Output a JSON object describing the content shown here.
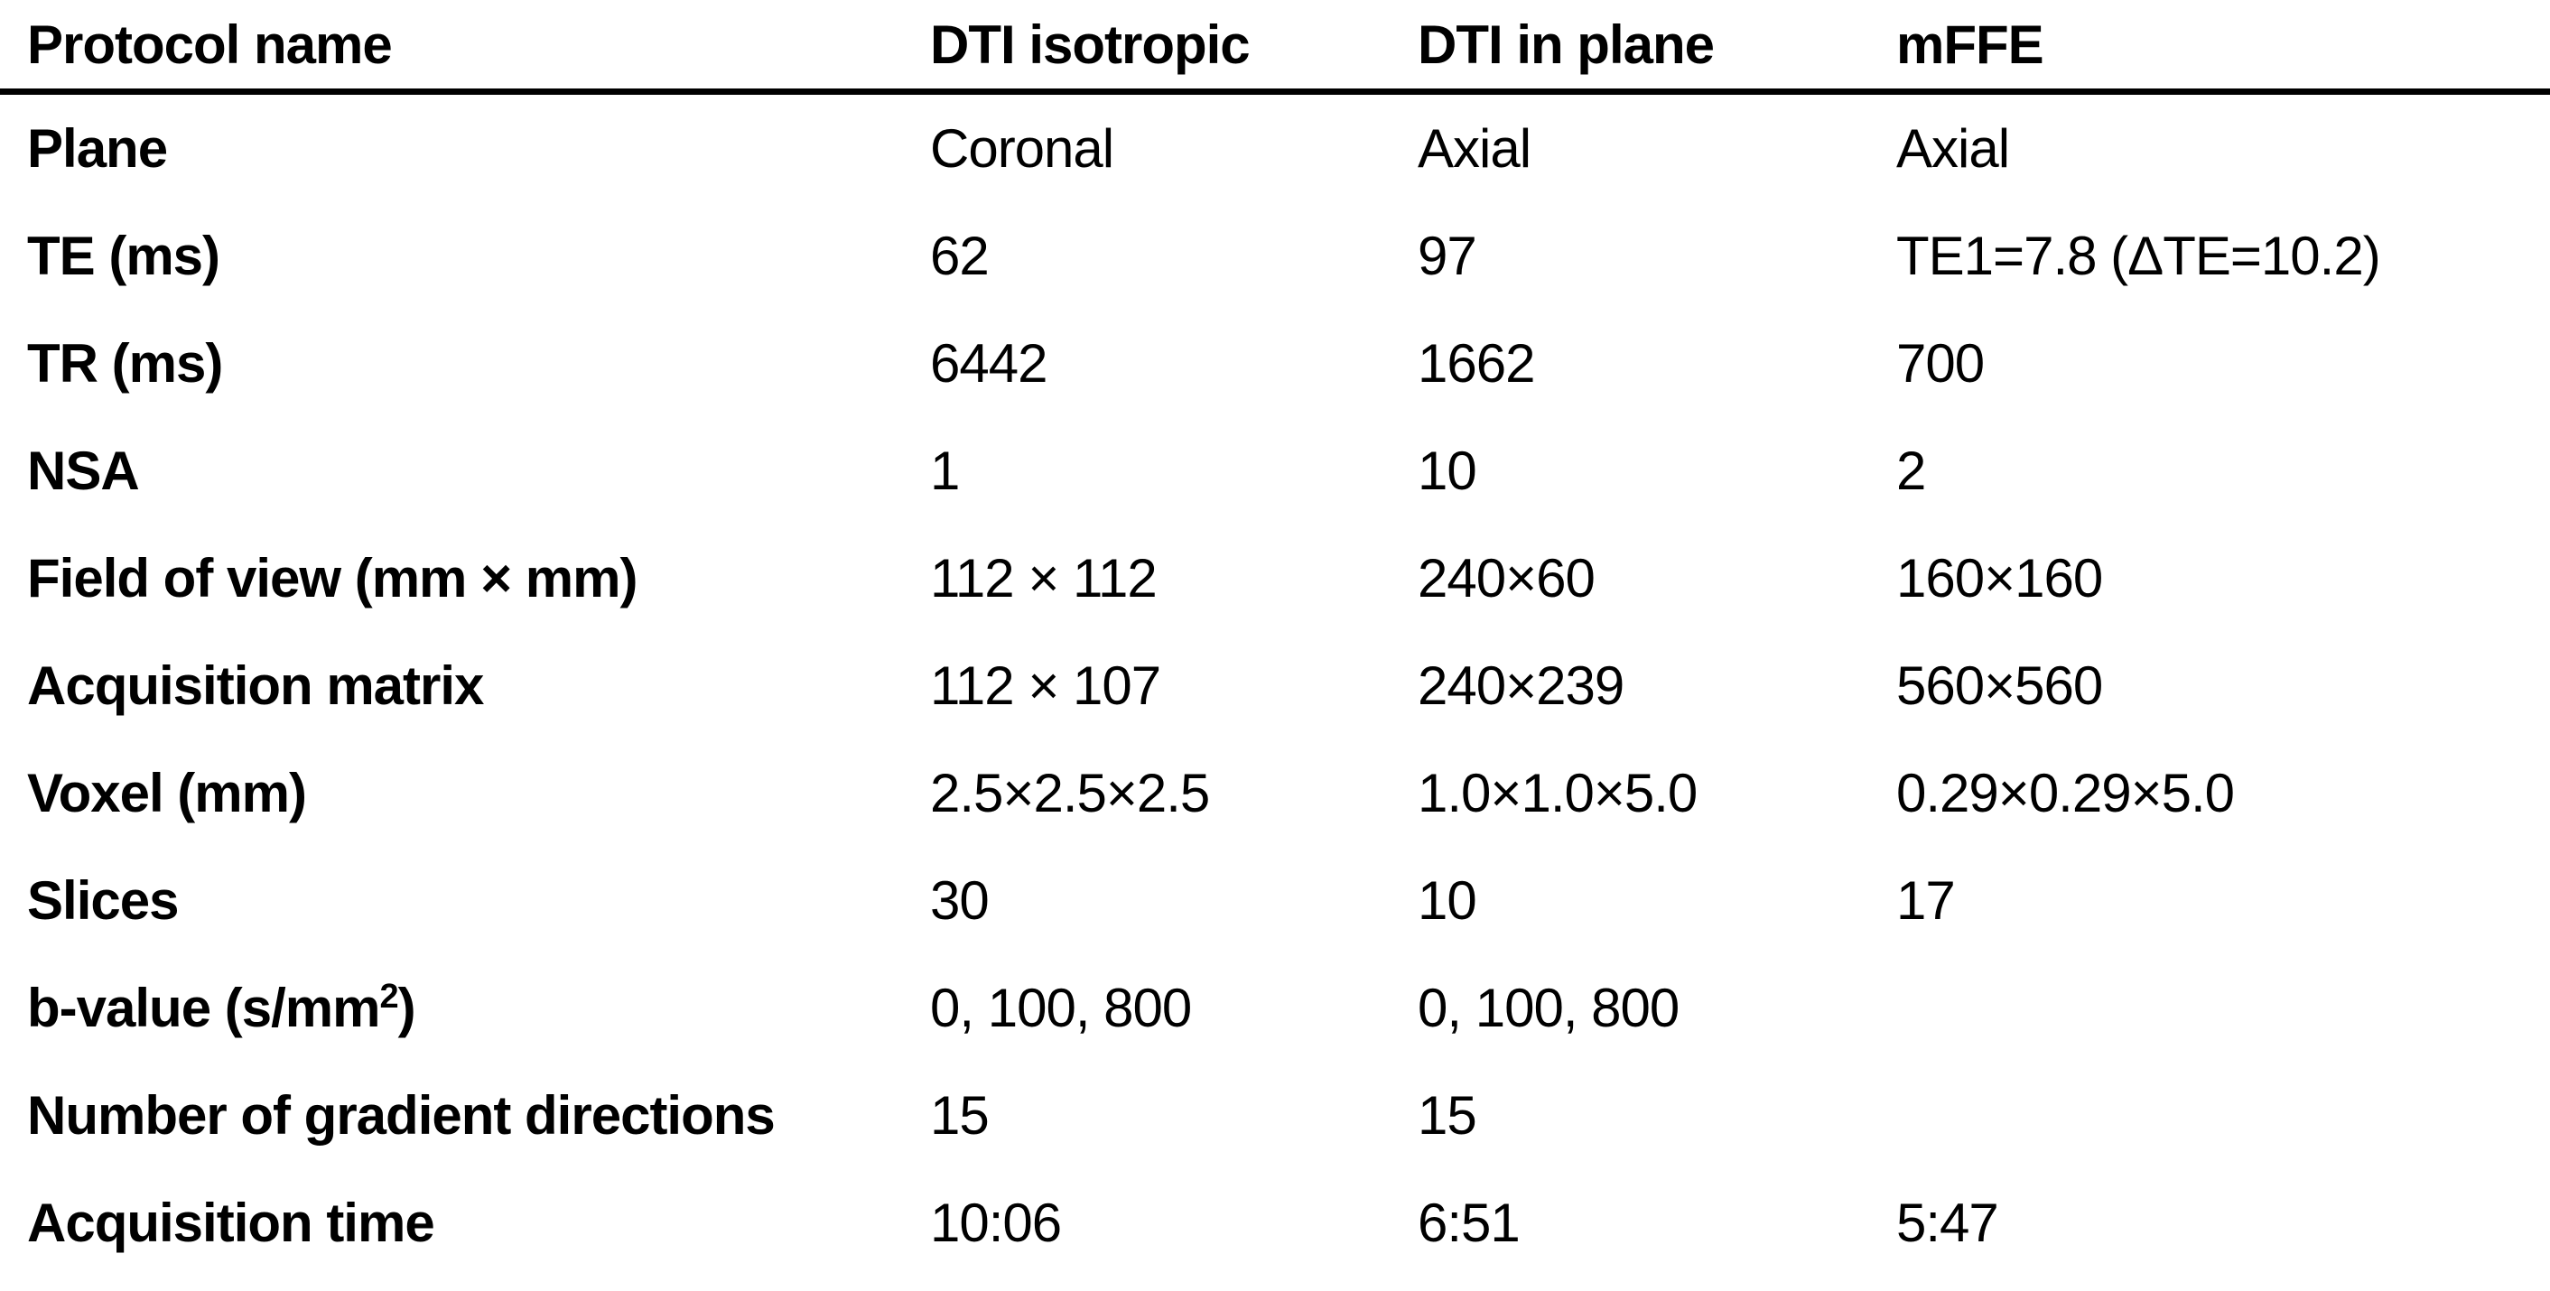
{
  "table": {
    "columns": [
      "Protocol name",
      "DTI isotropic",
      "DTI in plane",
      "mFFE"
    ],
    "rows": [
      {
        "label": "Plane",
        "values": [
          "Coronal",
          "Axial",
          "Axial"
        ]
      },
      {
        "label": "TE (ms)",
        "values": [
          "62",
          "97",
          "TE1=7.8 (ΔTE=10.2)"
        ]
      },
      {
        "label": "TR (ms)",
        "values": [
          "6442",
          "1662",
          "700"
        ]
      },
      {
        "label": "NSA",
        "values": [
          "1",
          "10",
          "2"
        ]
      },
      {
        "label": "Field of view (mm × mm)",
        "values": [
          "112 × 112",
          "240×60",
          "160×160"
        ]
      },
      {
        "label": "Acquisition matrix",
        "values": [
          "112 × 107",
          "240×239",
          "560×560"
        ]
      },
      {
        "label": "Voxel (mm)",
        "values": [
          "2.5×2.5×2.5",
          "1.0×1.0×5.0",
          "0.29×0.29×5.0"
        ]
      },
      {
        "label": "Slices",
        "values": [
          "30",
          "10",
          "17"
        ]
      },
      {
        "label": "b-value (s/mm",
        "label_sup": "2",
        "label_after": ")",
        "values": [
          "0, 100, 800",
          "0, 100, 800",
          ""
        ]
      },
      {
        "label": "Number of gradient directions",
        "values": [
          "15",
          "15",
          ""
        ]
      },
      {
        "label": "Acquisition time",
        "values": [
          "10:06",
          "6:51",
          "5:47"
        ]
      }
    ],
    "style": {
      "text_color": "#000000",
      "background": "#ffffff",
      "header_rule_color": "#000000"
    }
  }
}
